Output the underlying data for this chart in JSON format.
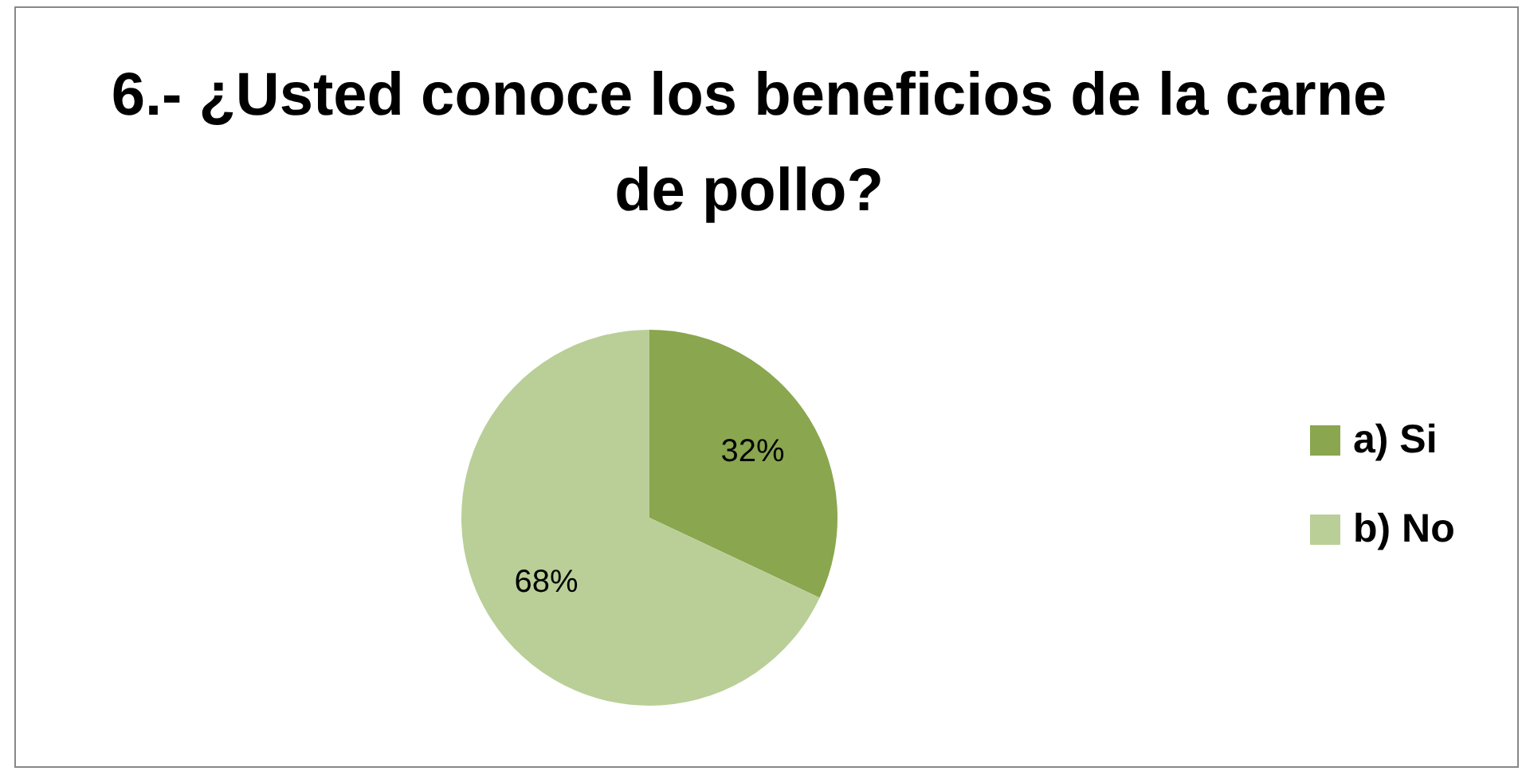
{
  "chart_data": {
    "type": "pie",
    "title": "6.- ¿Usted conoce los beneficios de la carne de pollo?",
    "categories": [
      "a) Si",
      "b) No"
    ],
    "values": [
      32,
      68
    ],
    "colors": [
      "#8aa64f",
      "#b9cf97"
    ],
    "value_labels": [
      "32%",
      "68%"
    ],
    "legend": "right"
  }
}
